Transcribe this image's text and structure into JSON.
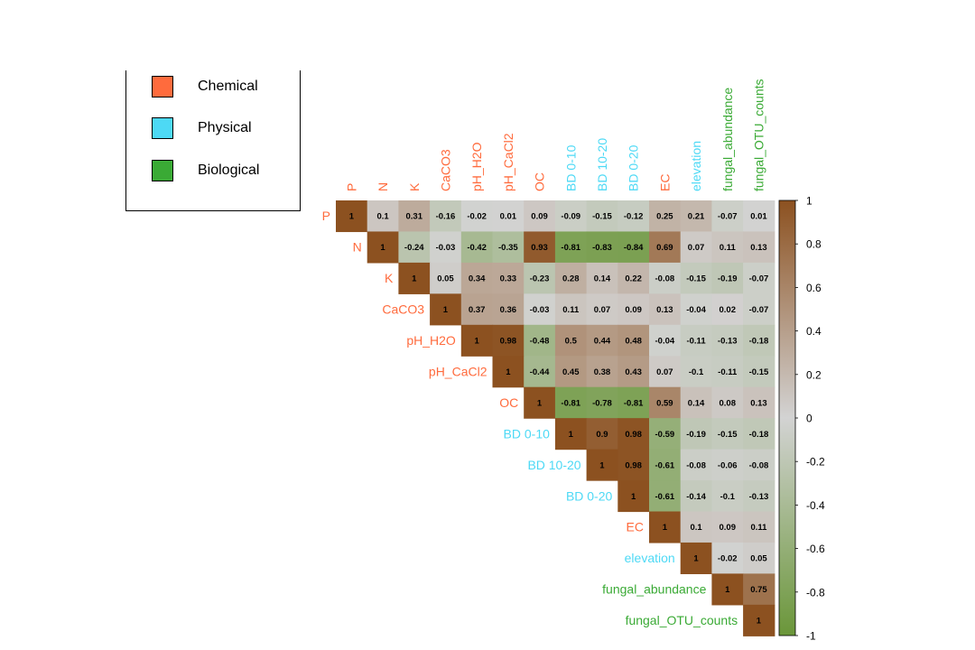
{
  "legend": {
    "items": [
      {
        "label": "Chemical",
        "color": "#FF6B3D"
      },
      {
        "label": "Physical",
        "color": "#4DD9F5"
      },
      {
        "label": "Biological",
        "color": "#3AAA35"
      }
    ]
  },
  "chart_data": {
    "type": "heatmap",
    "variables": [
      "P",
      "N",
      "K",
      "CaCO3",
      "pH_H2O",
      "pH_CaCl2",
      "OC",
      "BD 0-10",
      "BD 10-20",
      "BD 0-20",
      "EC",
      "elevation",
      "fungal_abundance",
      "fungal_OTU_counts"
    ],
    "variable_groups": [
      "Chemical",
      "Chemical",
      "Chemical",
      "Chemical",
      "Chemical",
      "Chemical",
      "Chemical",
      "Physical",
      "Physical",
      "Physical",
      "Chemical",
      "Physical",
      "Biological",
      "Biological"
    ],
    "group_colors": {
      "Chemical": "#FF6B3D",
      "Physical": "#4DD9F5",
      "Biological": "#3AAA35"
    },
    "matrix_upper": [
      [
        "1",
        "0.1",
        "0.31",
        "-0.16",
        "-0.02",
        "0.01",
        "0.09",
        "-0.09",
        "-0.15",
        "-0.12",
        "0.25",
        "0.21",
        "-0.07",
        "0.01"
      ],
      [
        "1",
        "-0.24",
        "-0.03",
        "-0.42",
        "-0.35",
        "0.93",
        "-0.81",
        "-0.83",
        "-0.84",
        "0.69",
        "0.07",
        "0.11",
        "0.13"
      ],
      [
        "1",
        "0.05",
        "0.34",
        "0.33",
        "-0.23",
        "0.28",
        "0.14",
        "0.22",
        "-0.08",
        "-0.15",
        "-0.19",
        "-0.07"
      ],
      [
        "1",
        "0.37",
        "0.36",
        "-0.03",
        "0.11",
        "0.07",
        "0.09",
        "0.13",
        "-0.04",
        "0.02",
        "-0.07"
      ],
      [
        "1",
        "0.98",
        "-0.48",
        "0.5",
        "0.44",
        "0.48",
        "-0.04",
        "-0.11",
        "-0.13",
        "-0.18"
      ],
      [
        "1",
        "-0.44",
        "0.45",
        "0.38",
        "0.43",
        "0.07",
        "-0.1",
        "-0.11",
        "-0.15"
      ],
      [
        "1",
        "-0.81",
        "-0.78",
        "-0.81",
        "0.59",
        "0.14",
        "0.08",
        "0.13"
      ],
      [
        "1",
        "0.9",
        "0.98",
        "-0.59",
        "-0.19",
        "-0.15",
        "-0.18"
      ],
      [
        "1",
        "0.98",
        "-0.61",
        "-0.08",
        "-0.06",
        "-0.08"
      ],
      [
        "1",
        "-0.61",
        "-0.14",
        "-0.1",
        "-0.13"
      ],
      [
        "1",
        "0.1",
        "0.09",
        "0.11"
      ],
      [
        "1",
        "-0.02",
        "0.05"
      ],
      [
        "1",
        "0.75"
      ],
      [
        "1"
      ]
    ],
    "colorbar": {
      "range": [
        -1,
        1
      ],
      "ticks": [
        "1",
        "0.8",
        "0.6",
        "0.4",
        "0.2",
        "0",
        "-0.2",
        "-0.4",
        "-0.6",
        "-0.8",
        "-1"
      ],
      "colors": {
        "negative": "#6A9639",
        "zero": "#D3D3D3",
        "positive": "#8C5120"
      }
    }
  }
}
